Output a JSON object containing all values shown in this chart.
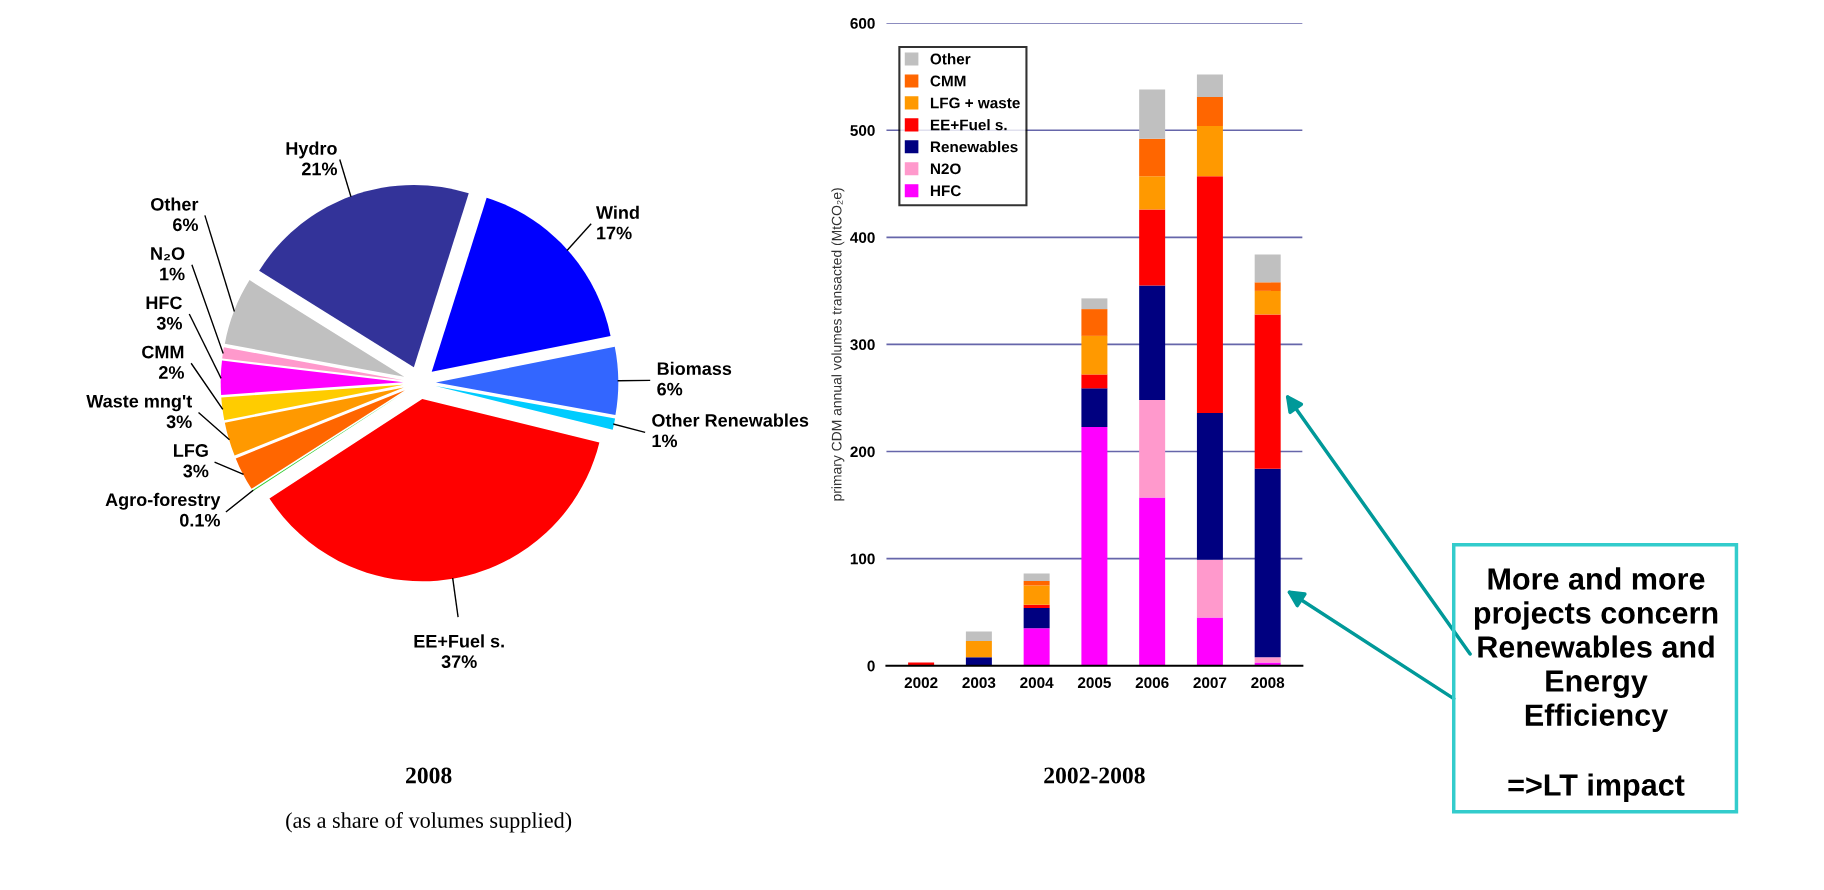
{
  "chart_data": [
    {
      "type": "pie",
      "title": "2008",
      "subtitle": "(as a share of volumes supplied)",
      "categories": [
        "Hydro",
        "Wind",
        "Biomass",
        "Other Renewables",
        "EE+Fuel s.",
        "Agro-forestry",
        "LFG",
        "Waste mng't",
        "CMM",
        "HFC",
        "N₂O",
        "Other"
      ],
      "values": [
        21,
        17,
        6,
        1,
        37,
        0.1,
        3,
        3,
        2,
        3,
        1,
        6
      ],
      "value_labels": [
        "21%",
        "17%",
        "6%",
        "1%",
        "37%",
        "0.1%",
        "3%",
        "3%",
        "2%",
        "3%",
        "1%",
        "6%"
      ],
      "colors": [
        "#333399",
        "#0000ff",
        "#3366ff",
        "#00ccff",
        "#ff0000",
        "#33cc33",
        "#ff6600",
        "#ff9900",
        "#ffcc00",
        "#ff00ff",
        "#ff99cc",
        "#c0c0c0"
      ]
    },
    {
      "type": "bar",
      "stacked": true,
      "title": "2002-2008",
      "ylabel": "primary CDM annual volumes transacted (MtCO₂e)",
      "categories": [
        "2002",
        "2003",
        "2004",
        "2005",
        "2006",
        "2007",
        "2008"
      ],
      "series": [
        {
          "name": "HFC",
          "color": "#ff00ff",
          "values": [
            0,
            0,
            35,
            223,
            157,
            45,
            3
          ]
        },
        {
          "name": "N2O",
          "color": "#ff99cc",
          "values": [
            0,
            0,
            0,
            0,
            91,
            54,
            5
          ]
        },
        {
          "name": "Renewables",
          "color": "#000080",
          "values": [
            0,
            8,
            19,
            36,
            107,
            137,
            176
          ]
        },
        {
          "name": "EE+Fuel s.",
          "color": "#ff0000",
          "values": [
            3,
            0,
            3,
            13,
            71,
            221,
            144
          ]
        },
        {
          "name": "LFG + waste",
          "color": "#ff9900",
          "values": [
            0,
            15,
            18,
            36,
            31,
            47,
            22
          ]
        },
        {
          "name": "CMM",
          "color": "#ff6600",
          "values": [
            0,
            0,
            4,
            25,
            35,
            27,
            8
          ]
        },
        {
          "name": "Other",
          "color": "#c0c0c0",
          "values": [
            0,
            9,
            7,
            10,
            46,
            21,
            26
          ]
        }
      ],
      "ylim": [
        0,
        600
      ],
      "yticks": [
        0,
        100,
        200,
        300,
        400,
        500,
        600
      ],
      "grid": "y",
      "legend": "top left",
      "annotations": [
        "More and more\nprojects concern\nRenewables and\nEnergy\nEfficiency",
        "=>LT impact"
      ]
    }
  ]
}
